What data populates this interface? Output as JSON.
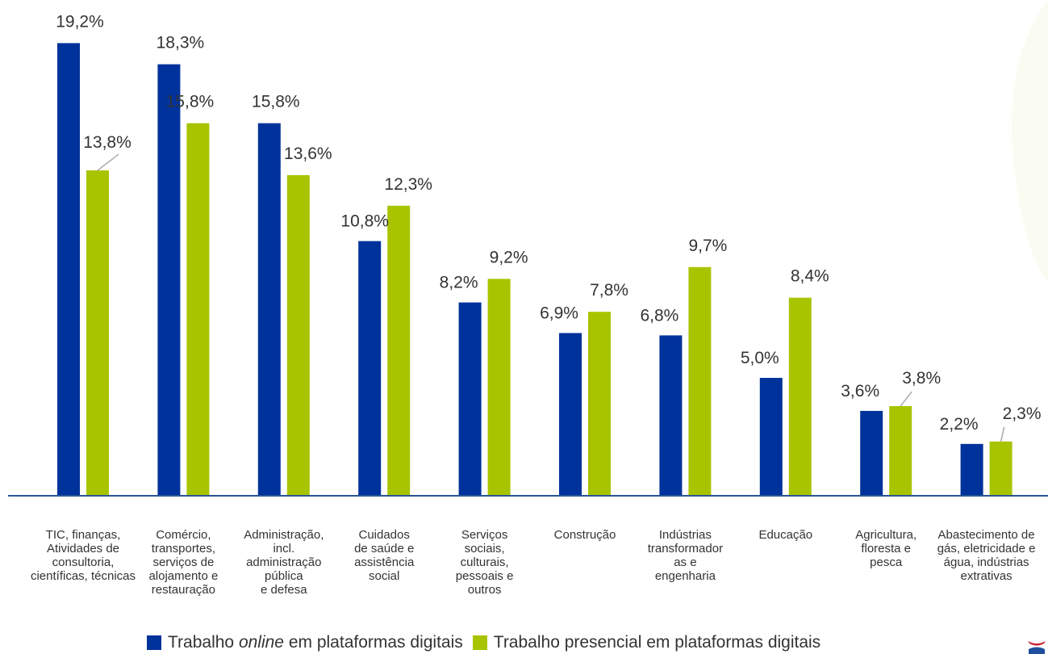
{
  "colors": {
    "online": "#00329b",
    "presencial": "#a8c400",
    "axis": "#2b5797",
    "text": "#333333"
  },
  "legend": {
    "online": {
      "prefix": "Trabalho ",
      "emphasis": "online",
      "suffix": " em plataformas digitais"
    },
    "presencial": {
      "label": "Trabalho presencial em plataformas digitais"
    }
  },
  "chart_data": {
    "type": "bar",
    "ylim": [
      0,
      20
    ],
    "grid": false,
    "legend_position": "bottom",
    "categories": [
      "TIC, finanças,\nAtividades de\nconsultoria,\ncientíficas, técnicas",
      "Comércio,\ntransportes,\nserviços de\nalojamento e\nrestauração",
      "Administração,\nincl.\nadministração\npública\ne defesa",
      "Cuidados\nde saúde e\nassistência\nsocial",
      "Serviços\nsociais,\nculturais,\npessoais e\noutros",
      "Construção",
      "Indústrias\ntransformador\nas e\nengenharia",
      "Educação",
      "Agricultura,\nfloresta e\npesca",
      "Abastecimento de\ngás, eletricidade e\nágua, indústrias\nextrativas"
    ],
    "series": [
      {
        "name": "Trabalho online em plataformas digitais",
        "values": [
          19.2,
          18.3,
          15.8,
          10.8,
          8.2,
          6.9,
          6.8,
          5.0,
          3.6,
          2.2
        ],
        "labels": [
          "19,2%",
          "18,3%",
          "15,8%",
          "10,8%",
          "8,2%",
          "6,9%",
          "6,8%",
          "5,0%",
          "3,6%",
          "2,2%"
        ]
      },
      {
        "name": "Trabalho presencial em plataformas digitais",
        "values": [
          13.8,
          15.8,
          13.6,
          12.3,
          9.2,
          7.8,
          9.7,
          8.4,
          3.8,
          2.3
        ],
        "labels": [
          "13,8%",
          "15,8%",
          "13,6%",
          "12,3%",
          "9,2%",
          "7,8%",
          "9,7%",
          "8,4%",
          "3,8%",
          "2,3%"
        ]
      }
    ]
  }
}
